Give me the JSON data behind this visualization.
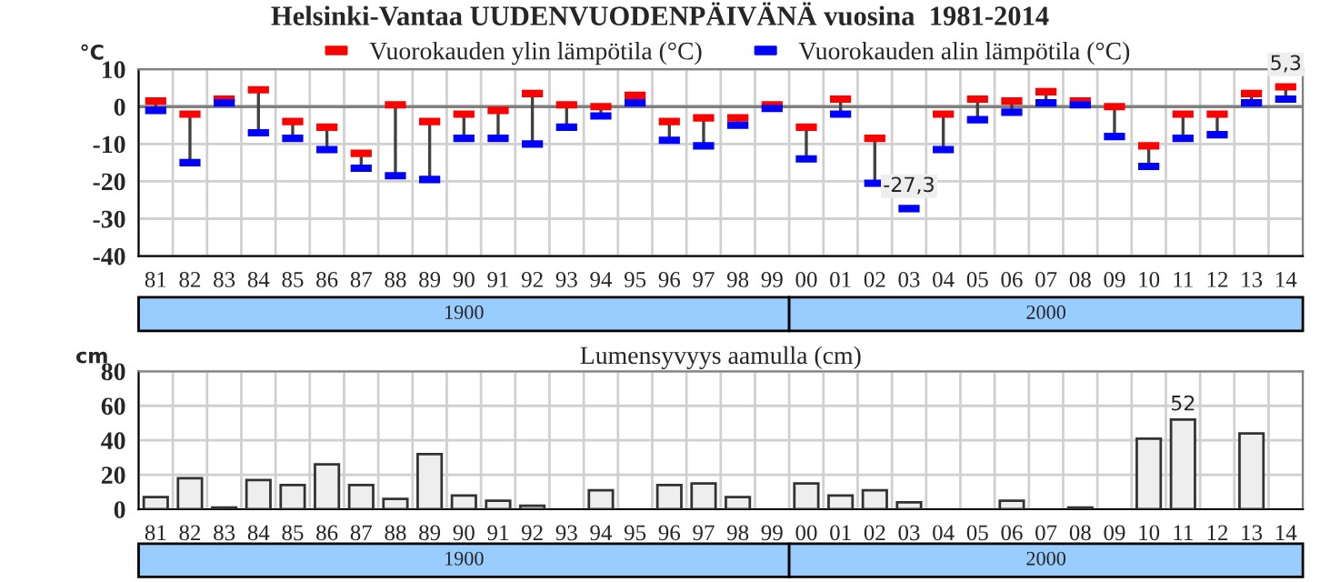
{
  "chart_data": [
    {
      "type": "scatter",
      "title": "Helsinki-Vantaa UUDENVUODENPÄIVÄNÄ vuosina  1981-2014",
      "ylabel": "°C",
      "categories": [
        "81",
        "82",
        "83",
        "84",
        "85",
        "86",
        "87",
        "88",
        "89",
        "90",
        "91",
        "92",
        "93",
        "94",
        "95",
        "96",
        "97",
        "98",
        "99",
        "00",
        "01",
        "02",
        "03",
        "04",
        "05",
        "06",
        "07",
        "08",
        "09",
        "10",
        "11",
        "12",
        "13",
        "14"
      ],
      "series": [
        {
          "name": "Vuorokauden ylin lämpötila (°C)",
          "color": "#ff0000",
          "values": [
            1.5,
            -2,
            2,
            4.5,
            -4,
            -5.5,
            -12.5,
            0.5,
            -4,
            -2,
            -1,
            3.5,
            0.5,
            0,
            3,
            -4,
            -3,
            -3,
            0.5,
            -5.5,
            2,
            -8.5,
            null,
            -2,
            2,
            1.5,
            4,
            1.5,
            0,
            -10.5,
            -2,
            -2,
            3.5,
            5.3
          ],
          "value_labels": [
            null,
            null,
            null,
            null,
            null,
            null,
            null,
            null,
            null,
            null,
            null,
            null,
            null,
            null,
            null,
            null,
            null,
            null,
            null,
            null,
            null,
            null,
            null,
            null,
            null,
            null,
            null,
            null,
            null,
            null,
            null,
            null,
            null,
            "5,3"
          ]
        },
        {
          "name": "Vuorokauden alin lämpötila (°C)",
          "color": "#0000ff",
          "values": [
            -1,
            -15,
            1,
            -7,
            -8.5,
            -11.5,
            -16.5,
            -18.5,
            -19.5,
            -8.5,
            -8.5,
            -10,
            -5.5,
            -2.5,
            1,
            -9,
            -10.5,
            -5,
            -0.5,
            -14,
            -2,
            -20.5,
            -27.3,
            -11.5,
            -3.5,
            -1.5,
            1,
            0.5,
            -8,
            -16,
            -8.5,
            -7.5,
            1,
            2
          ],
          "value_labels": [
            null,
            null,
            null,
            null,
            null,
            null,
            null,
            null,
            null,
            null,
            null,
            null,
            null,
            null,
            null,
            null,
            null,
            null,
            null,
            null,
            null,
            null,
            "-27,3",
            null,
            null,
            null,
            null,
            null,
            null,
            null,
            null,
            null,
            null,
            null
          ]
        }
      ],
      "marker": "square",
      "ylim": [
        -40,
        10
      ],
      "yticks": [
        -40,
        -30,
        -20,
        -10,
        0,
        10
      ],
      "ref_lines": [
        {
          "axis": "y",
          "value": 0,
          "color": "#808080"
        }
      ],
      "grid": true,
      "legend": "top",
      "annotations": [
        "1900",
        "2000"
      ]
    },
    {
      "type": "bar",
      "title": "Lumensyvyys aamulla (cm)",
      "ylabel": "cm",
      "categories": [
        "81",
        "82",
        "83",
        "84",
        "85",
        "86",
        "87",
        "88",
        "89",
        "90",
        "91",
        "92",
        "93",
        "94",
        "95",
        "96",
        "97",
        "98",
        "99",
        "00",
        "01",
        "02",
        "03",
        "04",
        "05",
        "06",
        "07",
        "08",
        "09",
        "10",
        "11",
        "12",
        "13",
        "14"
      ],
      "values": [
        7,
        18,
        1,
        17,
        14,
        26,
        14,
        6,
        32,
        8,
        5,
        2,
        null,
        11,
        null,
        14,
        15,
        7,
        null,
        15,
        8,
        11,
        4,
        null,
        null,
        5,
        null,
        1,
        null,
        41,
        52,
        null,
        44,
        null
      ],
      "value_labels": [
        null,
        null,
        null,
        null,
        null,
        null,
        null,
        null,
        null,
        null,
        null,
        null,
        null,
        null,
        null,
        null,
        null,
        null,
        null,
        null,
        null,
        null,
        null,
        null,
        null,
        null,
        null,
        null,
        null,
        null,
        "52",
        null,
        null,
        null
      ],
      "color": "#eeeeee",
      "ylim": [
        0,
        80
      ],
      "yticks": [
        0,
        20,
        40,
        60,
        80
      ],
      "grid": true,
      "annotations": [
        "1900",
        "2000"
      ]
    }
  ]
}
